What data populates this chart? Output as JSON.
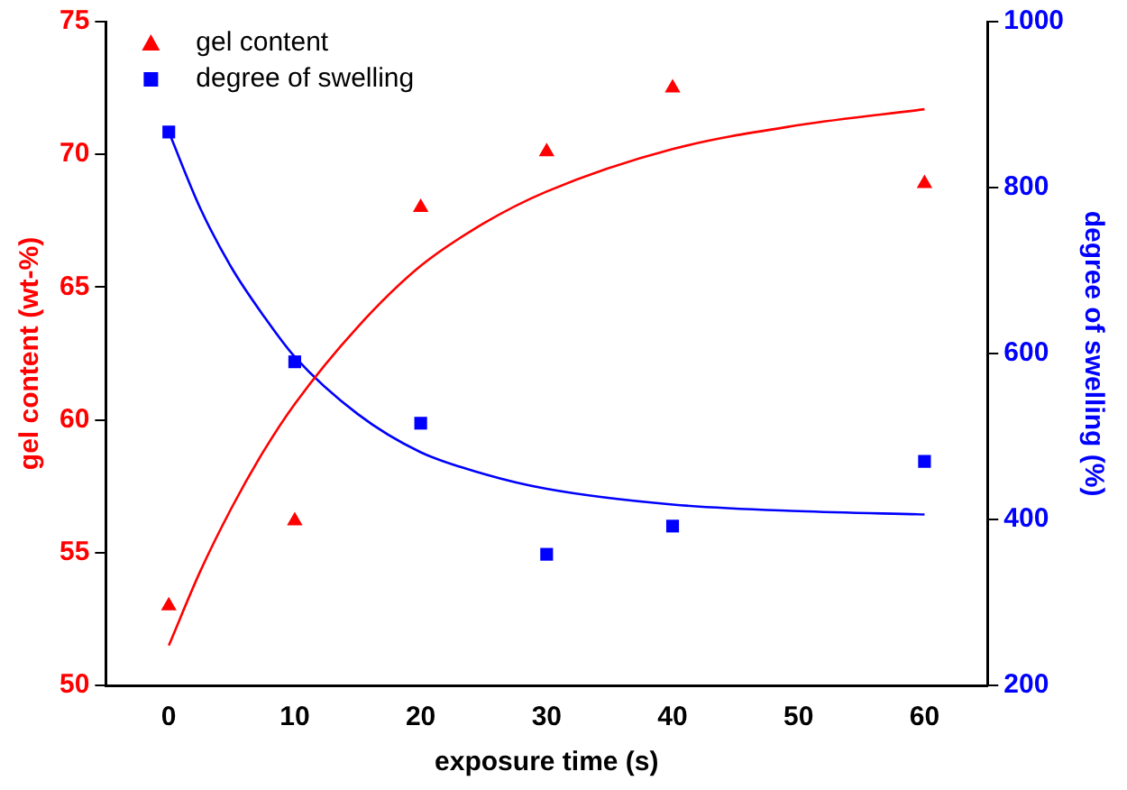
{
  "chart_data": {
    "type": "scatter",
    "xlabel": "exposure time (s)",
    "ylabel": "gel content (wt-%)",
    "y2label": "degree of swelling (%)",
    "xlim": [
      -5,
      65
    ],
    "xticks": [
      0,
      10,
      20,
      30,
      40,
      50,
      60
    ],
    "ylim": [
      50,
      75
    ],
    "yticks": [
      50,
      55,
      60,
      65,
      70,
      75
    ],
    "y2lim": [
      200,
      1000
    ],
    "y2ticks": [
      200,
      400,
      600,
      800,
      1000
    ],
    "grid": false,
    "legend": "top left",
    "series": [
      {
        "name": "gel content",
        "color": "#ff0000",
        "marker": "triangle",
        "x": [
          0,
          10,
          20,
          30,
          40,
          60
        ],
        "values": [
          53.0,
          56.2,
          68.0,
          70.1,
          72.5,
          68.9
        ]
      },
      {
        "name": "degree of swelling",
        "color": "#0000ff",
        "marker": "square",
        "axis": "y2",
        "x": [
          0,
          10,
          20,
          30,
          40,
          60
        ],
        "values": [
          867,
          590,
          516,
          358,
          392,
          470
        ]
      },
      {
        "type": "line",
        "color": "#ff0000",
        "marker": "none",
        "x": [
          0,
          2.5,
          5,
          7.5,
          10,
          15,
          20,
          25,
          30,
          40,
          50,
          60
        ],
        "values": [
          51.5,
          54.3,
          56.7,
          58.8,
          60.6,
          63.5,
          65.8,
          67.4,
          68.6,
          70.2,
          71.1,
          71.7
        ]
      },
      {
        "type": "line",
        "color": "#0000ff",
        "marker": "none",
        "axis": "y2",
        "x": [
          0,
          2.5,
          5,
          7.5,
          10,
          15,
          20,
          25,
          30,
          40,
          50,
          60
        ],
        "values": [
          867,
          775,
          703,
          646,
          596,
          527,
          481,
          455,
          437,
          418,
          410,
          406
        ]
      }
    ]
  }
}
